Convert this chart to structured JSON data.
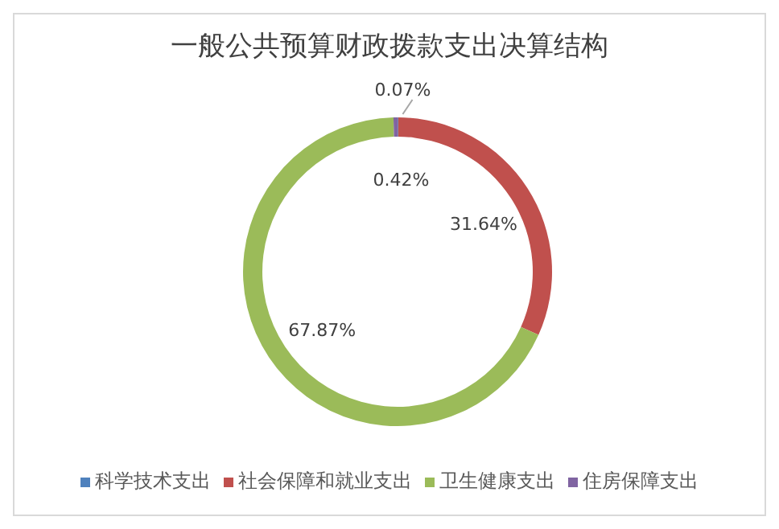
{
  "chart_data": {
    "type": "donut",
    "title": "一般公共预算财政拨款支出决算结构",
    "categories": [
      "科学技术支出",
      "社会保障和就业支出",
      "卫生健康支出",
      "住房保障支出"
    ],
    "values": [
      0.07,
      31.64,
      67.87,
      0.42
    ],
    "colors": [
      "#4f81bd",
      "#c0504d",
      "#9bbb59",
      "#8064a2"
    ],
    "value_labels": [
      "0.07%",
      "31.64%",
      "67.87%",
      "0.42%"
    ],
    "legend": "bottom"
  }
}
